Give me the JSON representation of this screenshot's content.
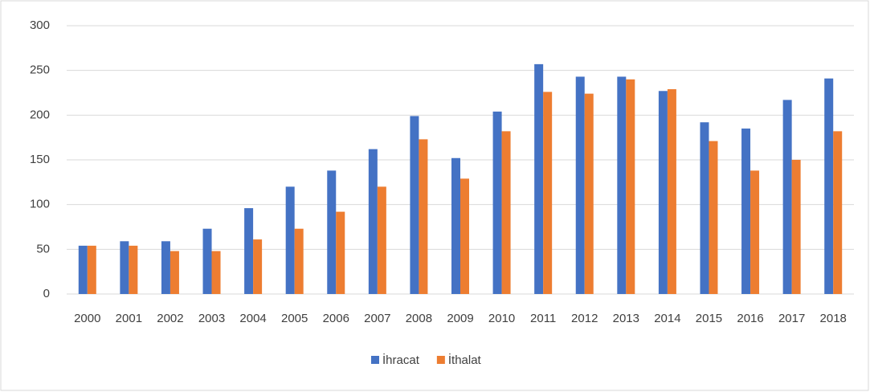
{
  "chart_data": {
    "type": "bar",
    "categories": [
      "2000",
      "2001",
      "2002",
      "2003",
      "2004",
      "2005",
      "2006",
      "2007",
      "2008",
      "2009",
      "2010",
      "2011",
      "2012",
      "2013",
      "2014",
      "2015",
      "2016",
      "2017",
      "2018"
    ],
    "series": [
      {
        "name": "İhracat",
        "color": "#4472c4",
        "values": [
          54,
          59,
          59,
          73,
          96,
          120,
          138,
          162,
          199,
          152,
          204,
          257,
          243,
          243,
          227,
          192,
          185,
          217,
          241
        ]
      },
      {
        "name": "İthalat",
        "color": "#ed7d31",
        "values": [
          54,
          54,
          48,
          48,
          61,
          73,
          92,
          120,
          173,
          129,
          182,
          226,
          224,
          240,
          229,
          171,
          138,
          150,
          182
        ]
      }
    ],
    "ylim": [
      0,
      300
    ],
    "yticks": [
      0,
      50,
      100,
      150,
      200,
      250,
      300
    ],
    "grid": true,
    "legend": "bottom"
  }
}
